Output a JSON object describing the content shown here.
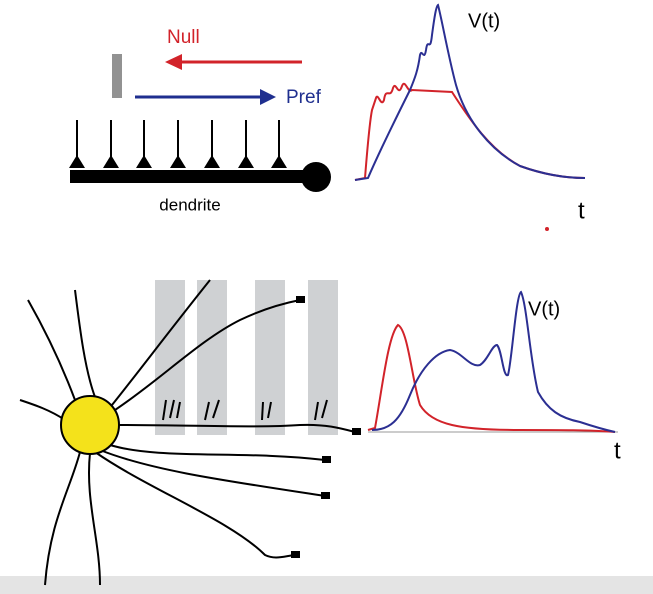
{
  "top_panel": {
    "null_label": "Null",
    "pref_label": "Pref",
    "dendrite_label": "dendrite",
    "y_label": "V(t)",
    "x_label": "t"
  },
  "bottom_panel": {
    "y_label": "V(t)",
    "x_label": "t"
  }
}
